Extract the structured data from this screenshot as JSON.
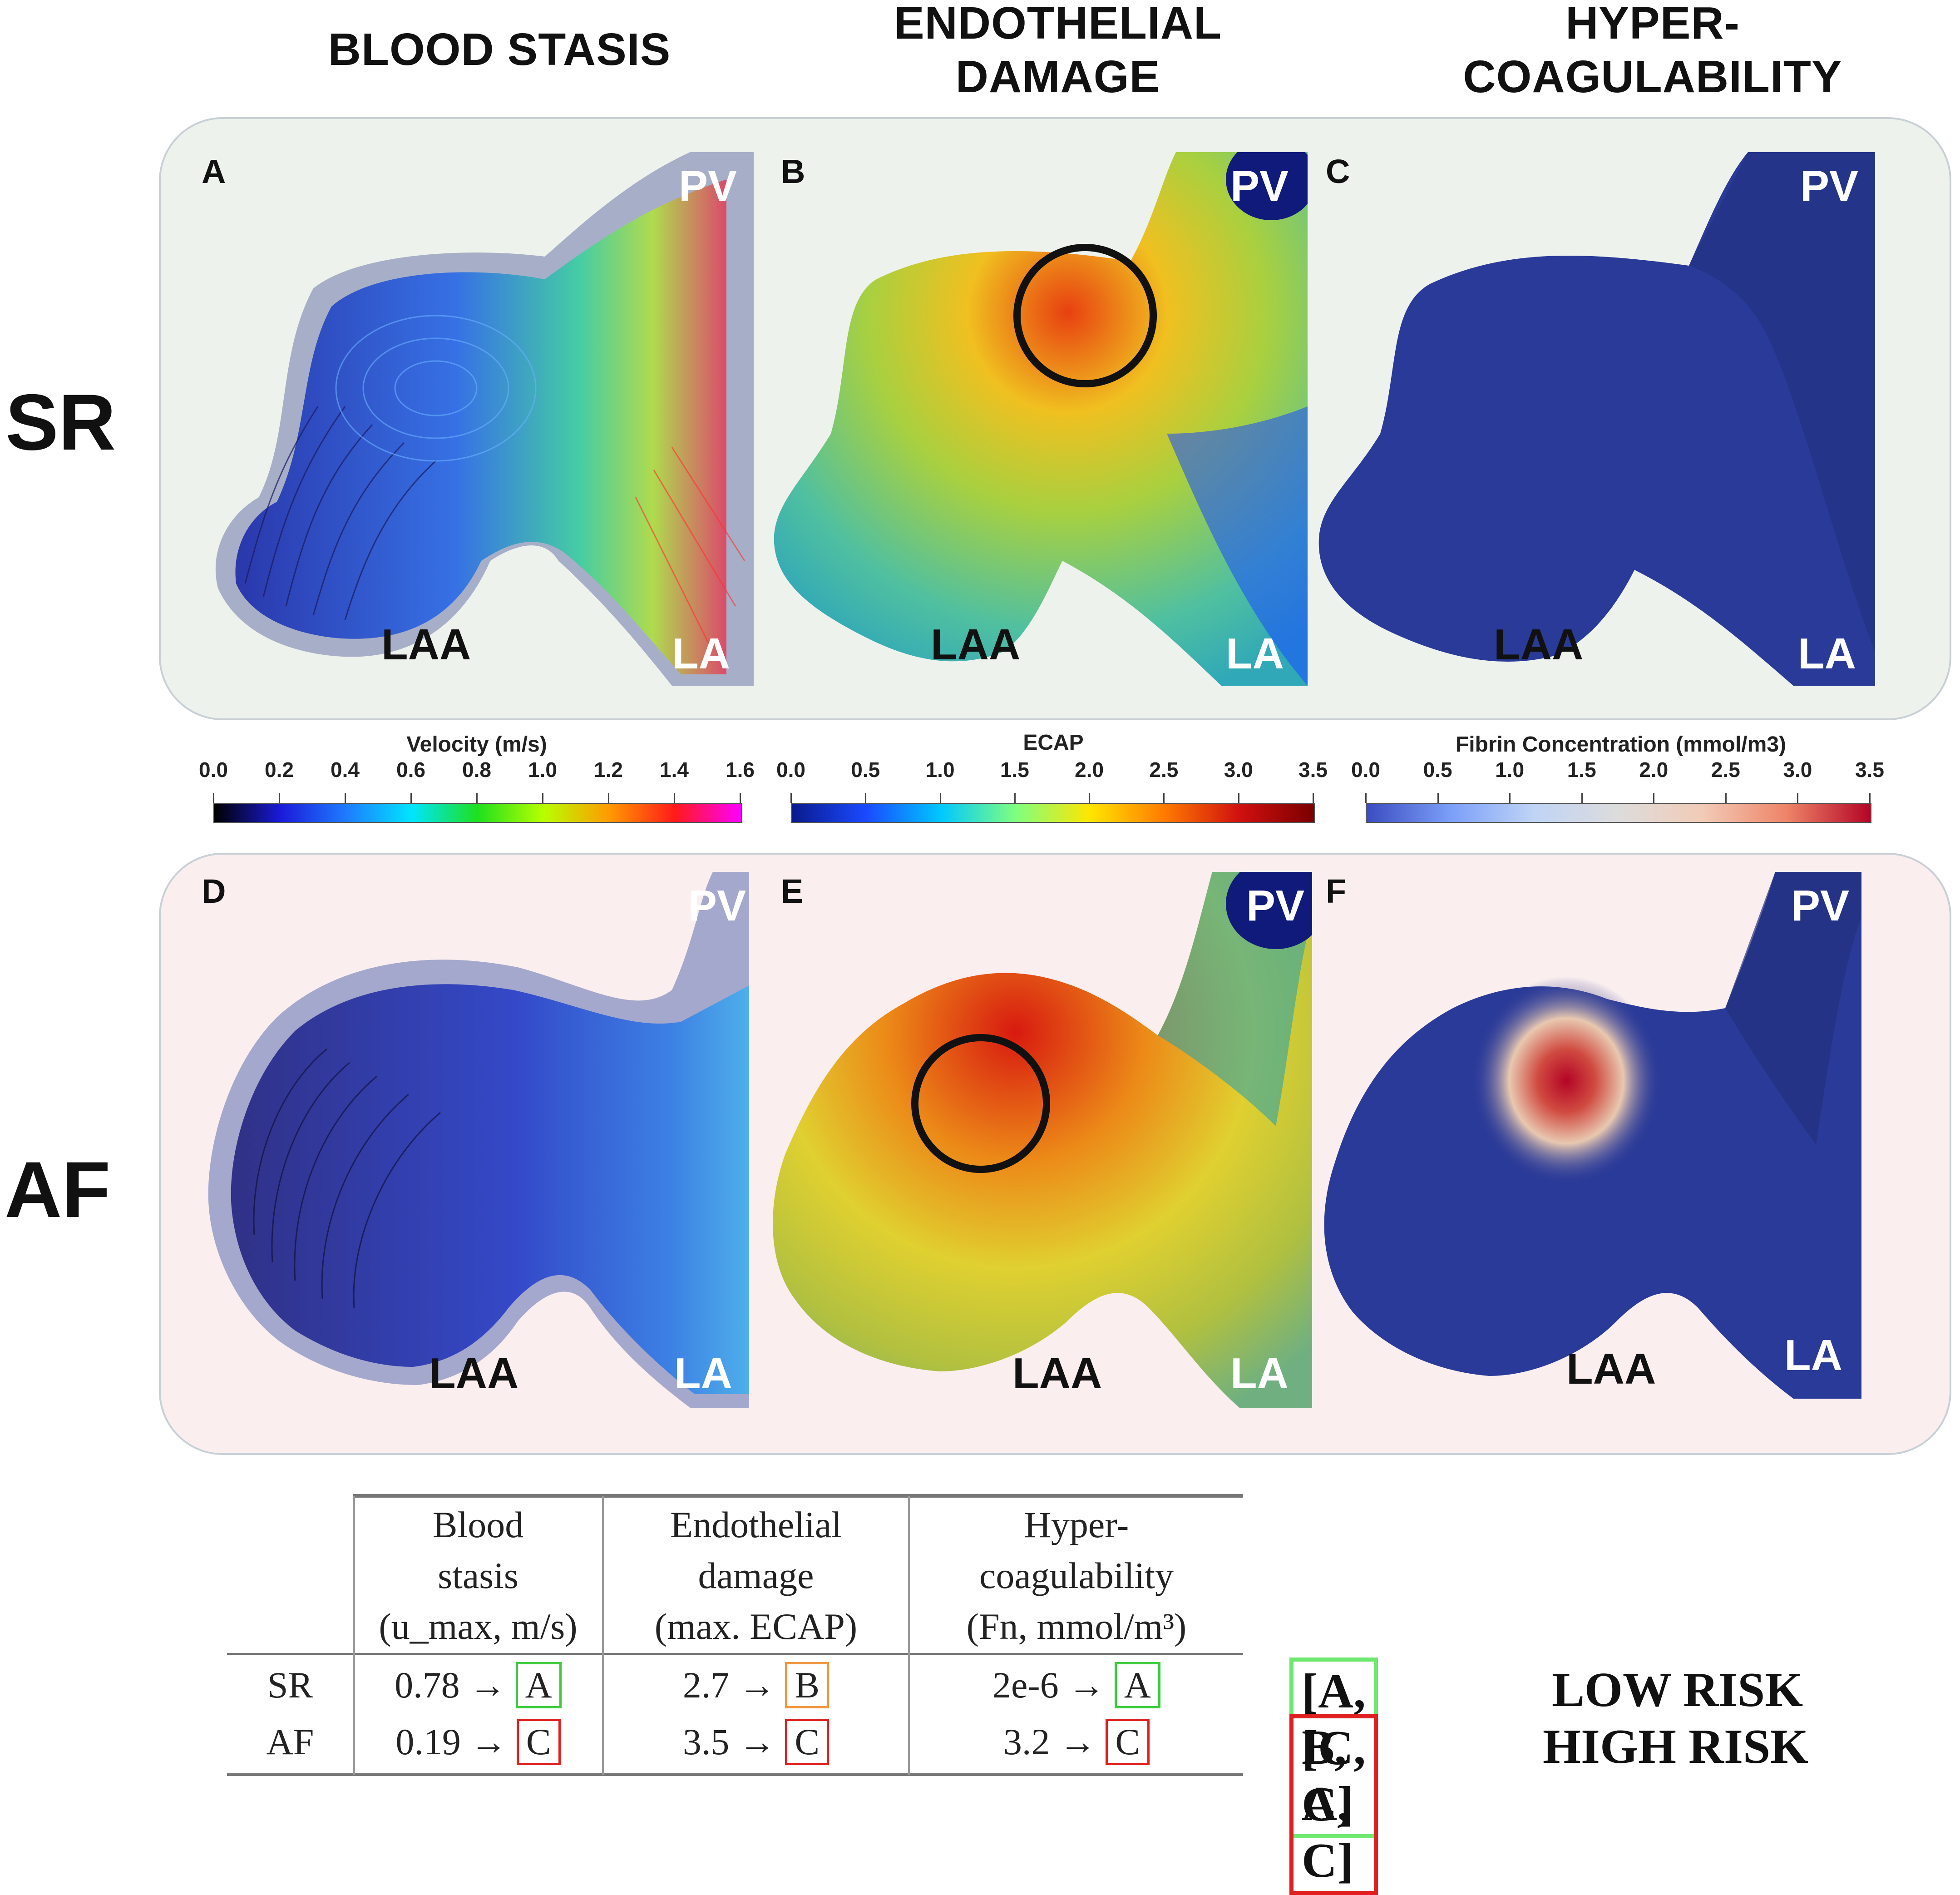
{
  "column_headers": [
    {
      "id": "blood-stasis",
      "text": "BLOOD STASIS"
    },
    {
      "id": "endothelial-damage",
      "text": "ENDOTHELIAL\nDAMAGE"
    },
    {
      "id": "hyper-coagulability",
      "text": "HYPER-\nCOAGULABILITY"
    }
  ],
  "row_headers": {
    "sr": "SR",
    "af": "AF"
  },
  "panels": {
    "A": {
      "letter": "A",
      "top": "PV",
      "laa": "LAA",
      "la": "LA"
    },
    "B": {
      "letter": "B",
      "top": "PV",
      "laa": "LAA",
      "la": "LA"
    },
    "C": {
      "letter": "C",
      "top": "PV",
      "laa": "LAA",
      "la": "LA"
    },
    "D": {
      "letter": "D",
      "top": "PV",
      "laa": "LAA",
      "la": "LA"
    },
    "E": {
      "letter": "E",
      "top": "PV",
      "laa": "LAA",
      "la": "LA"
    },
    "F": {
      "letter": "F",
      "top": "PV",
      "laa": "LAA",
      "la": "LA"
    }
  },
  "colorbars": [
    {
      "title": "Velocity (m/s)",
      "ticks": [
        "0.0",
        "0.2",
        "0.4",
        "0.6",
        "0.8",
        "1.0",
        "1.2",
        "1.4",
        "1.6"
      ],
      "colors": [
        "#000000",
        "#1a1ad8",
        "#1e7bff",
        "#00e5ff",
        "#1ee01e",
        "#b8ff00",
        "#ff9a00",
        "#ff1a1a",
        "#ff00ff"
      ]
    },
    {
      "title": "ECAP",
      "ticks": [
        "0.0",
        "0.5",
        "1.0",
        "1.5",
        "2.0",
        "2.5",
        "3.0",
        "3.5"
      ],
      "colors": [
        "#0a1a8c",
        "#1a4aff",
        "#00c8ff",
        "#7fff7f",
        "#ffe600",
        "#ff7a00",
        "#d01010",
        "#7a0000"
      ]
    },
    {
      "title": "Fibrin Concentration (mmol/m3)",
      "ticks": [
        "0.0",
        "0.5",
        "1.0",
        "1.5",
        "2.0",
        "2.5",
        "3.0",
        "3.5"
      ],
      "colors": [
        "#3b4cc0",
        "#7b9ff9",
        "#c0d4f5",
        "#dddcdc",
        "#f2cbb7",
        "#ee8468",
        "#b40426"
      ]
    }
  ],
  "table": {
    "headers": [
      [
        "Blood",
        "stasis",
        "(u_max, m/s)"
      ],
      [
        "Endothelial",
        "damage",
        "(max. ECAP)"
      ],
      [
        "Hyper-",
        "coagulability",
        "(Fn, mmol/m³)"
      ]
    ],
    "rows": [
      {
        "label": "SR",
        "cells": [
          {
            "value": "0.78 →",
            "grade": "A",
            "color": "#3ccc3c"
          },
          {
            "value": "2.7 →",
            "grade": "B",
            "color": "#f0963c"
          },
          {
            "value": "2e-6 →",
            "grade": "A",
            "color": "#3ccc3c"
          }
        ]
      },
      {
        "label": "AF",
        "cells": [
          {
            "value": "0.19 →",
            "grade": "C",
            "color": "#e02020"
          },
          {
            "value": "3.5 →",
            "grade": "C",
            "color": "#e02020"
          },
          {
            "value": "3.2 →",
            "grade": "C",
            "color": "#e02020"
          }
        ]
      }
    ]
  },
  "summary": [
    {
      "code": "[A, B, A]",
      "risk": "LOW RISK",
      "color": "#6ee86e"
    },
    {
      "code": "[C, C, C]",
      "risk": "HIGH RISK",
      "color": "#e02020"
    }
  ],
  "colors": {
    "sr_box_bg": "#eef2ec",
    "af_box_bg": "#faeeee"
  }
}
